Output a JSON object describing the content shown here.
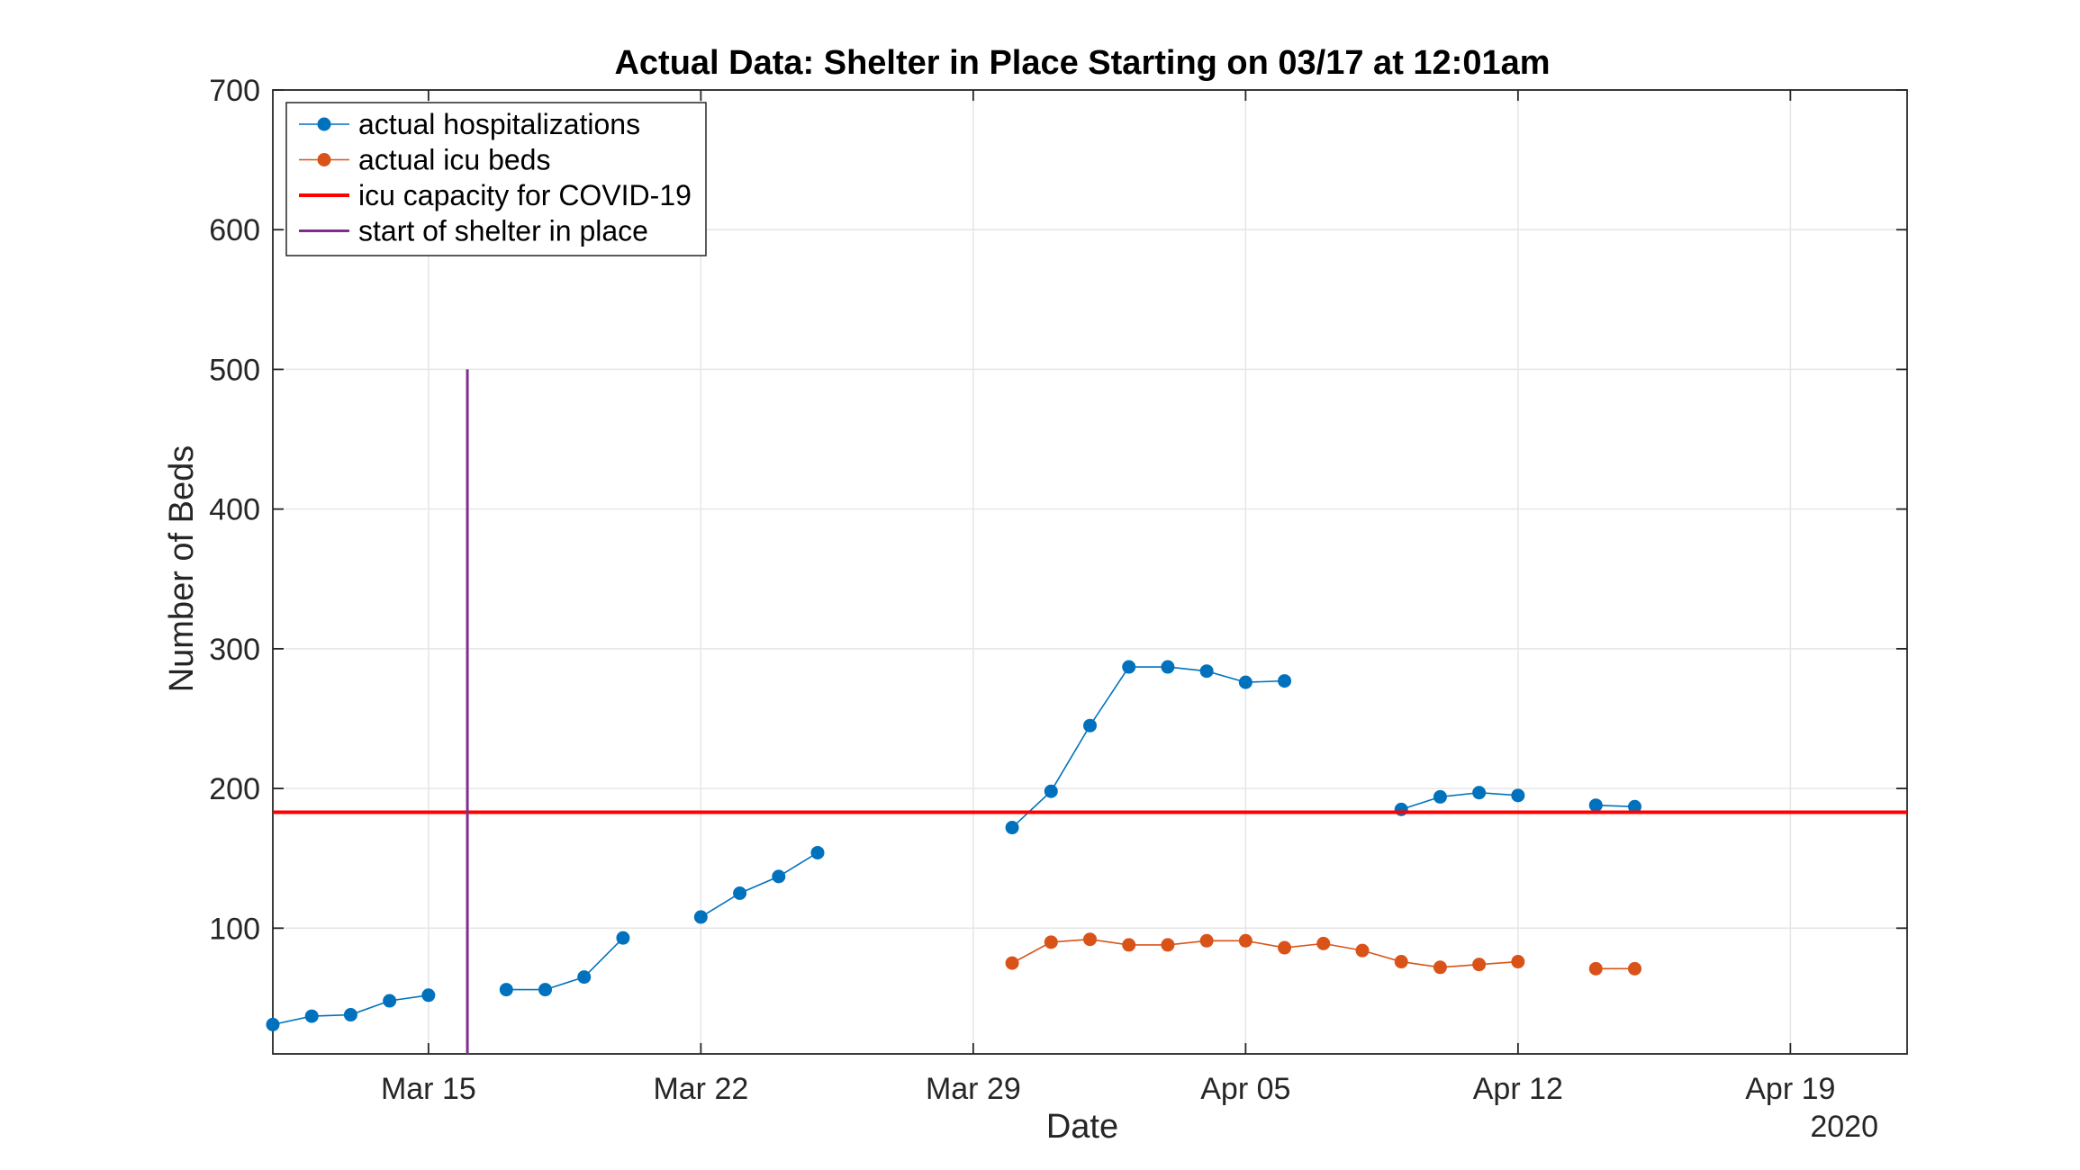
{
  "chart_data": {
    "type": "line",
    "title": "Actual Data: Shelter in Place Starting on 03/17 at 12:01am",
    "xlabel": "Date",
    "ylabel": "Number of Beds",
    "year_label": "2020",
    "xlim": [
      "2020-03-11",
      "2020-04-22"
    ],
    "ylim": [
      10,
      700
    ],
    "yticks": [
      100,
      200,
      300,
      400,
      500,
      600,
      700
    ],
    "xticks": [
      {
        "date": "2020-03-15",
        "label": "Mar 15"
      },
      {
        "date": "2020-03-22",
        "label": "Mar 22"
      },
      {
        "date": "2020-03-29",
        "label": "Mar 29"
      },
      {
        "date": "2020-04-05",
        "label": "Apr 05"
      },
      {
        "date": "2020-04-12",
        "label": "Apr 12"
      },
      {
        "date": "2020-04-19",
        "label": "Apr 19"
      }
    ],
    "grid": true,
    "legend_position": "top-left",
    "series": [
      {
        "name": "actual hospitalizations",
        "color": "#0072BD",
        "style": "line-marker",
        "points": [
          {
            "x": "2020-03-11",
            "y": 31
          },
          {
            "x": "2020-03-12",
            "y": 37
          },
          {
            "x": "2020-03-13",
            "y": 38
          },
          {
            "x": "2020-03-14",
            "y": 48
          },
          {
            "x": "2020-03-15",
            "y": 52
          },
          {
            "x": "2020-03-16",
            "y": null
          },
          {
            "x": "2020-03-17",
            "y": 56
          },
          {
            "x": "2020-03-18",
            "y": 56
          },
          {
            "x": "2020-03-19",
            "y": 65
          },
          {
            "x": "2020-03-20",
            "y": 93
          },
          {
            "x": "2020-03-21",
            "y": null
          },
          {
            "x": "2020-03-22",
            "y": 108
          },
          {
            "x": "2020-03-23",
            "y": 125
          },
          {
            "x": "2020-03-24",
            "y": 137
          },
          {
            "x": "2020-03-25",
            "y": 154
          },
          {
            "x": "2020-03-26",
            "y": null
          },
          {
            "x": "2020-03-30",
            "y": 172
          },
          {
            "x": "2020-03-31",
            "y": 198
          },
          {
            "x": "2020-04-01",
            "y": 245
          },
          {
            "x": "2020-04-02",
            "y": 287
          },
          {
            "x": "2020-04-03",
            "y": 287
          },
          {
            "x": "2020-04-04",
            "y": 284
          },
          {
            "x": "2020-04-05",
            "y": 276
          },
          {
            "x": "2020-04-06",
            "y": 277
          },
          {
            "x": "2020-04-07",
            "y": null
          },
          {
            "x": "2020-04-09",
            "y": 185
          },
          {
            "x": "2020-04-10",
            "y": 194
          },
          {
            "x": "2020-04-11",
            "y": 197
          },
          {
            "x": "2020-04-12",
            "y": 195
          },
          {
            "x": "2020-04-13",
            "y": null
          },
          {
            "x": "2020-04-14",
            "y": 188
          },
          {
            "x": "2020-04-15",
            "y": 187
          }
        ]
      },
      {
        "name": "actual icu beds",
        "color": "#D95319",
        "style": "line-marker",
        "points": [
          {
            "x": "2020-03-30",
            "y": 75
          },
          {
            "x": "2020-03-31",
            "y": 90
          },
          {
            "x": "2020-04-01",
            "y": 92
          },
          {
            "x": "2020-04-02",
            "y": 88
          },
          {
            "x": "2020-04-03",
            "y": 88
          },
          {
            "x": "2020-04-04",
            "y": 91
          },
          {
            "x": "2020-04-05",
            "y": 91
          },
          {
            "x": "2020-04-06",
            "y": 86
          },
          {
            "x": "2020-04-07",
            "y": 89
          },
          {
            "x": "2020-04-08",
            "y": 84
          },
          {
            "x": "2020-04-09",
            "y": 76
          },
          {
            "x": "2020-04-10",
            "y": 72
          },
          {
            "x": "2020-04-11",
            "y": 74
          },
          {
            "x": "2020-04-12",
            "y": 76
          },
          {
            "x": "2020-04-13",
            "y": null
          },
          {
            "x": "2020-04-14",
            "y": 71
          },
          {
            "x": "2020-04-15",
            "y": 71
          }
        ]
      },
      {
        "name": "icu capacity for COVID-19",
        "color": "#FF0000",
        "style": "hline",
        "y": 183
      },
      {
        "name": "start of shelter in place",
        "color": "#7E2F8E",
        "style": "vline",
        "x": "2020-03-16",
        "y_range": [
          10,
          500
        ]
      }
    ]
  }
}
